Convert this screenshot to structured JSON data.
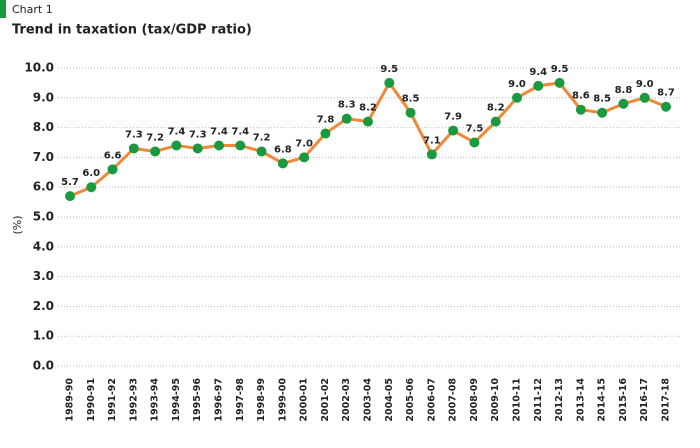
{
  "chart_data": {
    "type": "line",
    "label": "Chart 1",
    "title": "Trend in taxation (tax/GDP ratio)",
    "y_label": "(%)",
    "categories": [
      "1989-90",
      "1990-91",
      "1991-92",
      "1992-93",
      "1993-94",
      "1994-95",
      "1995-96",
      "1996-97",
      "1997-98",
      "1998-99",
      "1999-00",
      "2000-01",
      "2001-02",
      "2002-03",
      "2003-04",
      "2004-05",
      "2005-06",
      "2006-07",
      "2007-08",
      "2008-09",
      "2009-10",
      "2010-11",
      "2011-12",
      "2012-13",
      "2013-14",
      "2014-15",
      "2015-16",
      "2016-17",
      "2017-18"
    ],
    "series": [
      {
        "name": "Tax/GDP ratio",
        "color": "#f0883a",
        "marker_color": "#1a9a3e",
        "values": [
          5.7,
          6.0,
          6.6,
          7.3,
          7.2,
          7.4,
          7.3,
          7.4,
          7.4,
          7.2,
          6.8,
          7.0,
          7.8,
          8.3,
          8.2,
          9.5,
          8.5,
          7.1,
          7.9,
          7.5,
          8.2,
          9.0,
          9.4,
          9.5,
          8.6,
          8.5,
          8.8,
          9.0,
          8.7
        ],
        "value_labels": [
          "5.7",
          "6.0",
          "6.6",
          "7.3",
          "7.2",
          "7.4",
          "7.3",
          "7.4",
          "7.4",
          "7.2",
          "6.8",
          "7.0",
          "7.8",
          "8.3",
          "8.2",
          "9.5",
          "8.5",
          "7.1",
          "7.9",
          "7.5",
          "8.2",
          "9.0",
          "9.4",
          "9.5",
          "8.6",
          "8.5",
          "8.8",
          "9.0",
          "8.7"
        ]
      }
    ],
    "ylim": [
      0,
      10
    ],
    "yticks": [
      {
        "value": 0,
        "label": "0.0"
      },
      {
        "value": 1,
        "label": "1.0"
      },
      {
        "value": 2,
        "label": "2.0"
      },
      {
        "value": 3,
        "label": "3.0"
      },
      {
        "value": 4,
        "label": "4.0"
      },
      {
        "value": 5,
        "label": "5.0"
      },
      {
        "value": 6,
        "label": "6.0"
      },
      {
        "value": 7,
        "label": "7.0"
      },
      {
        "value": 8,
        "label": "8.0"
      },
      {
        "value": 9,
        "label": "9.0"
      },
      {
        "value": 10,
        "label": "10.0"
      }
    ],
    "grid": true
  }
}
